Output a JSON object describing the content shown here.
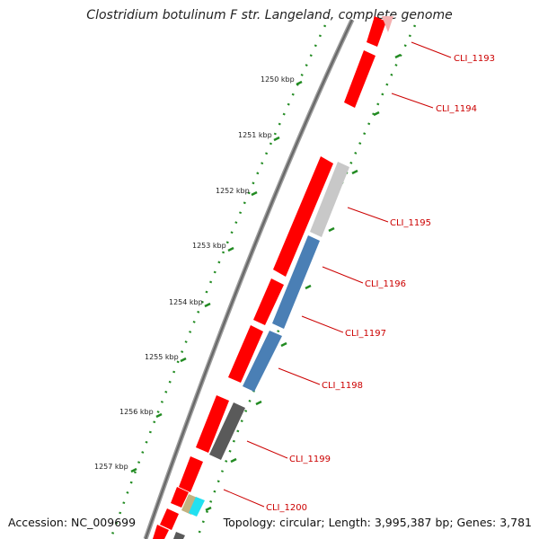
{
  "title": "Clostridium botulinum F str. Langeland, complete genome",
  "accession": "Accession: NC_009699",
  "topology": "Topology: circular; Length: 3,995,387 bp; Genes: 3,781",
  "colors": {
    "backbone": "#777777",
    "tick_green": "#228b22",
    "gene_red": "#ff0000",
    "gene_light_gray": "#c8c8c8",
    "gene_steel_blue": "#4a7fb5",
    "gene_dark_gray": "#5a5a5a",
    "gene_tan": "#c2b280",
    "gene_cyan": "#22e0f0",
    "label_red": "#cc0000"
  },
  "kbp_labels": [
    "1250 kbp",
    "1251 kbp",
    "1252 kbp",
    "1253 kbp",
    "1254 kbp",
    "1255 kbp",
    "1256 kbp",
    "1257 kbp"
  ],
  "gene_labels": [
    "CLI_1193",
    "CLI_1194",
    "CLI_1195",
    "CLI_1196",
    "CLI_1197",
    "CLI_1198",
    "CLI_1199",
    "CLI_1200"
  ]
}
